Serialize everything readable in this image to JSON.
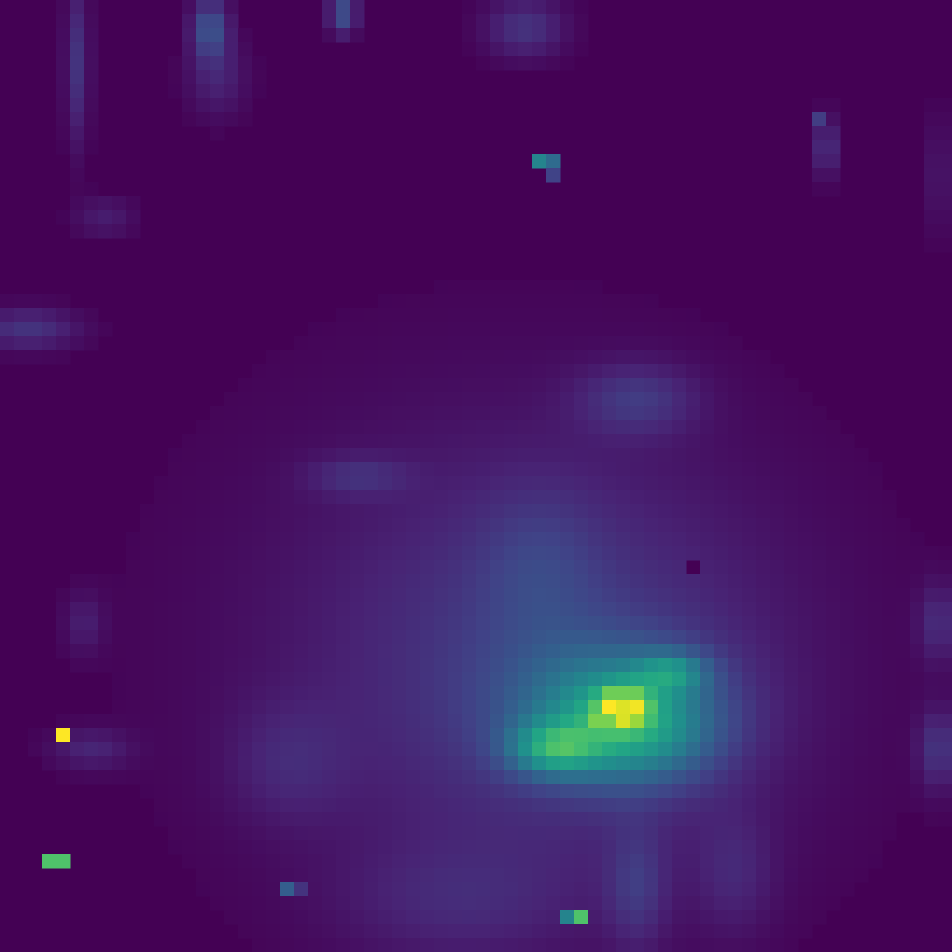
{
  "chart_data": {
    "type": "heatmap",
    "colormap": "viridis",
    "grid": false,
    "legend": "none",
    "title": "",
    "xlabel": "",
    "ylabel": "",
    "background_value": 0,
    "value_range": [
      0,
      1
    ],
    "rows": 68,
    "cols": 68,
    "blobs": [
      {
        "cx": 43.5,
        "cy": 50.0,
        "sx": 5.0,
        "sy": 3.2,
        "v": 0.3
      },
      {
        "cx": 40.0,
        "cy": 48.0,
        "sx": 11.0,
        "sy": 10.0,
        "v": 0.12
      },
      {
        "cx": 35.0,
        "cy": 45.0,
        "sx": 14.0,
        "sy": 13.0,
        "v": 0.07
      },
      {
        "cx": 45.0,
        "cy": 52.0,
        "sx": 4.0,
        "sy": 2.5,
        "v": 0.25
      },
      {
        "cx": 39.0,
        "cy": 53.0,
        "sx": 2.2,
        "sy": 1.3,
        "v": 0.35
      },
      {
        "cx": 44.0,
        "cy": 50.0,
        "sx": 1.2,
        "sy": 0.9,
        "v": 0.5
      },
      {
        "cx": 47.5,
        "cy": 47.5,
        "sx": 1.8,
        "sy": 1.0,
        "v": 0.25
      },
      {
        "cx": 38.0,
        "cy": 40.0,
        "sx": 3.0,
        "sy": 4.0,
        "v": 0.08
      },
      {
        "cx": 45.0,
        "cy": 28.0,
        "sx": 3.0,
        "sy": 1.8,
        "v": 0.14
      },
      {
        "cx": 25.0,
        "cy": 33.5,
        "sx": 2.5,
        "sy": 1.0,
        "v": 0.1
      },
      {
        "cx": 20.0,
        "cy": 54.0,
        "sx": 3.0,
        "sy": 3.0,
        "v": 0.08
      },
      {
        "cx": 32.0,
        "cy": 64.0,
        "sx": 6.0,
        "sy": 3.0,
        "v": 0.08
      },
      {
        "cx": 45.0,
        "cy": 63.0,
        "sx": 1.5,
        "sy": 3.0,
        "v": 0.12
      },
      {
        "cx": 52.0,
        "cy": 62.0,
        "sx": 2.0,
        "sy": 3.0,
        "v": 0.08
      },
      {
        "cx": 66.5,
        "cy": 53.0,
        "sx": 1.0,
        "sy": 2.0,
        "v": 0.15
      },
      {
        "cx": 66.5,
        "cy": 44.0,
        "sx": 1.0,
        "sy": 2.0,
        "v": 0.12
      },
      {
        "cx": 66.5,
        "cy": 12.0,
        "sx": 0.8,
        "sy": 3.0,
        "v": 0.06
      },
      {
        "cx": 5.0,
        "cy": 4.0,
        "sx": 0.6,
        "sy": 4.0,
        "v": 0.15
      },
      {
        "cx": 14.5,
        "cy": 1.5,
        "sx": 0.9,
        "sy": 1.5,
        "v": 0.25
      },
      {
        "cx": 24.0,
        "cy": 0.5,
        "sx": 0.7,
        "sy": 1.0,
        "v": 0.25
      },
      {
        "cx": 15.0,
        "cy": 5.0,
        "sx": 1.5,
        "sy": 2.0,
        "v": 0.1
      },
      {
        "cx": 37.0,
        "cy": 1.5,
        "sx": 2.0,
        "sy": 1.5,
        "v": 0.15
      },
      {
        "cx": 58.5,
        "cy": 10.0,
        "sx": 0.6,
        "sy": 1.5,
        "v": 0.15
      },
      {
        "cx": 1.5,
        "cy": 23.0,
        "sx": 2.5,
        "sy": 1.0,
        "v": 0.15
      },
      {
        "cx": 7.0,
        "cy": 15.0,
        "sx": 1.5,
        "sy": 1.0,
        "v": 0.08
      },
      {
        "cx": 6.0,
        "cy": 53.0,
        "sx": 2.0,
        "sy": 1.0,
        "v": 0.1
      },
      {
        "cx": 5.5,
        "cy": 44.0,
        "sx": 1.0,
        "sy": 1.5,
        "v": 0.08
      }
    ],
    "pixels": [
      {
        "col": 4,
        "row": 52,
        "value": 1.0
      },
      {
        "col": 3,
        "row": 61,
        "value": 0.72
      },
      {
        "col": 4,
        "row": 61,
        "value": 0.72
      },
      {
        "col": 41,
        "row": 65,
        "value": 0.72
      },
      {
        "col": 40,
        "row": 65,
        "value": 0.45
      },
      {
        "col": 38,
        "row": 11,
        "value": 0.45
      },
      {
        "col": 39,
        "row": 11,
        "value": 0.35
      },
      {
        "col": 39,
        "row": 12,
        "value": 0.2
      },
      {
        "col": 20,
        "row": 63,
        "value": 0.3
      },
      {
        "col": 21,
        "row": 63,
        "value": 0.15
      },
      {
        "col": 43,
        "row": 50,
        "value": 1.0
      },
      {
        "col": 44,
        "row": 50,
        "value": 0.95
      },
      {
        "col": 43,
        "row": 49,
        "value": 0.78
      },
      {
        "col": 44,
        "row": 49,
        "value": 0.78
      },
      {
        "col": 42,
        "row": 51,
        "value": 0.8
      },
      {
        "col": 43,
        "row": 51,
        "value": 0.8
      },
      {
        "col": 49,
        "row": 40,
        "value": 0.0
      },
      {
        "col": 58,
        "row": 8,
        "value": 0.18
      }
    ]
  }
}
